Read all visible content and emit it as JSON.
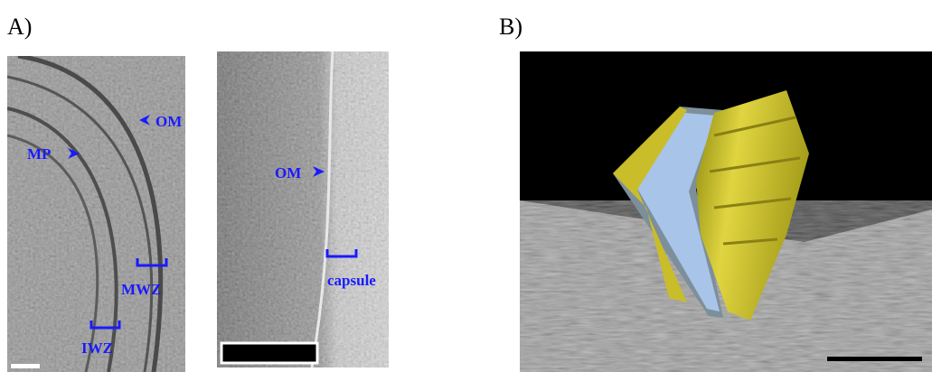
{
  "panel_a": {
    "label": "A)",
    "left_image": {
      "labels": [
        "OM",
        "MP",
        "MWZ",
        "IWZ"
      ]
    },
    "right_image": {
      "labels": [
        "OM",
        "capsule"
      ]
    }
  },
  "panel_b": {
    "label": "B)"
  }
}
